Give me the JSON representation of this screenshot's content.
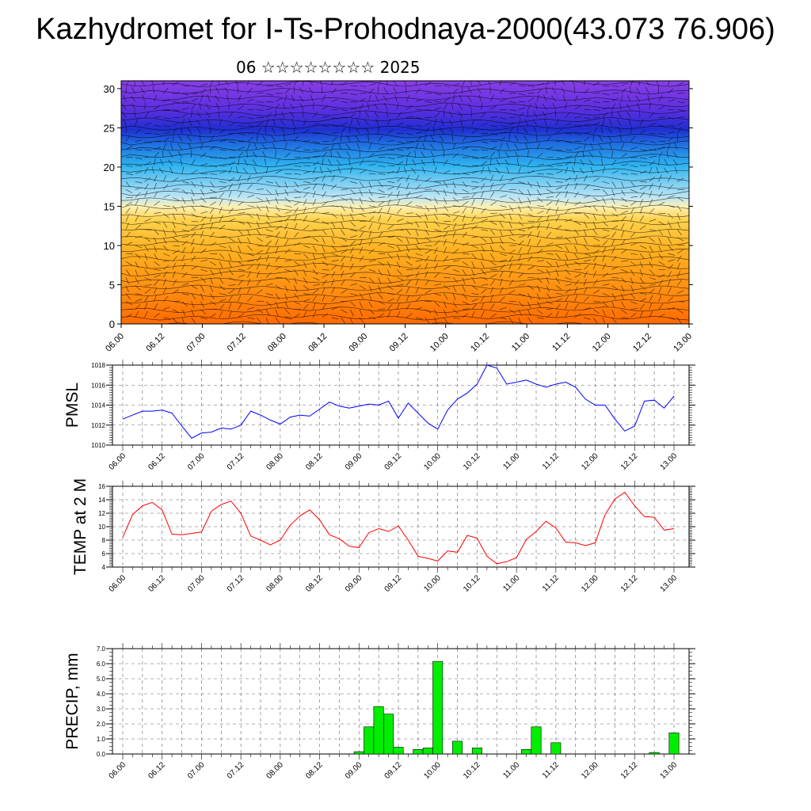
{
  "header": {
    "title": "Kazhydromet for I-Ts-Prohodnaya-2000(43.073 76.906)",
    "subtitle": "06 ☆☆☆☆☆☆☆☆ 2025"
  },
  "chart_data": [
    {
      "type": "heatmap",
      "ylim": [
        0,
        31
      ],
      "yticks": [
        0,
        5,
        10,
        15,
        20,
        25,
        30
      ],
      "xticks": [
        "06.00",
        "06.12",
        "07.00",
        "07.12",
        "08.00",
        "08.12",
        "09.00",
        "09.12",
        "10.00",
        "10.12",
        "11.00",
        "11.12",
        "12.00",
        "12.12",
        "13.00"
      ],
      "colors": {
        "low": "#ff6a00",
        "mid_warm": "#ffd24d",
        "mid_cold": "#bfe6f5",
        "cyan": "#2fb4f0",
        "blue": "#1f2fd0",
        "top": "#8a3fe6"
      }
    },
    {
      "type": "line",
      "ylabel": "PMSL",
      "ylim": [
        1010,
        1018
      ],
      "yticks": [
        1010,
        1012,
        1014,
        1016,
        1018
      ],
      "xticks": [
        "06.00",
        "06.12",
        "07.00",
        "07.12",
        "08.00",
        "08.12",
        "09.00",
        "09.12",
        "10.00",
        "10.12",
        "11.00",
        "11.12",
        "12.00",
        "12.12",
        "13.00"
      ],
      "color": "#0000ff",
      "x": [
        0,
        3,
        6,
        9,
        12,
        15,
        18,
        21,
        24,
        27,
        30,
        33,
        36,
        39,
        42,
        45,
        48,
        51,
        54,
        57,
        60,
        63,
        66,
        69,
        72,
        75,
        78,
        81,
        84,
        87,
        90,
        93,
        96,
        99,
        102,
        105,
        108,
        111,
        114,
        117,
        120,
        123,
        126,
        129,
        132,
        135,
        138,
        141,
        144,
        147,
        150,
        153,
        156,
        159,
        162,
        165,
        168
      ],
      "values": [
        1012.6,
        1013.0,
        1013.4,
        1013.4,
        1013.5,
        1013.2,
        1011.9,
        1010.7,
        1011.2,
        1011.3,
        1011.7,
        1011.6,
        1012.0,
        1013.4,
        1013.0,
        1012.5,
        1012.1,
        1012.8,
        1013.0,
        1012.9,
        1013.6,
        1014.3,
        1013.9,
        1013.7,
        1013.9,
        1014.1,
        1014.0,
        1014.4,
        1012.7,
        1014.2,
        1013.2,
        1012.2,
        1011.6,
        1013.5,
        1014.6,
        1015.2,
        1016.1,
        1018.0,
        1017.7,
        1016.1,
        1016.3,
        1016.5,
        1016.1,
        1015.8,
        1016.1,
        1016.3,
        1015.8,
        1014.6,
        1014.0,
        1014.0,
        1012.6,
        1011.4,
        1011.9,
        1014.4,
        1014.5,
        1013.7,
        1014.9
      ]
    },
    {
      "type": "line",
      "ylabel": "TEMP at 2 M",
      "ylim": [
        4,
        16
      ],
      "yticks": [
        4,
        6,
        8,
        10,
        12,
        14,
        16
      ],
      "xticks": [
        "06.00",
        "06.12",
        "07.00",
        "07.12",
        "08.00",
        "08.12",
        "09.00",
        "09.12",
        "10.00",
        "10.12",
        "11.00",
        "11.12",
        "12.00",
        "12.12",
        "13.00"
      ],
      "color": "#ff0000",
      "x": [
        0,
        3,
        6,
        9,
        12,
        15,
        18,
        21,
        24,
        27,
        30,
        33,
        36,
        39,
        42,
        45,
        48,
        51,
        54,
        57,
        60,
        63,
        66,
        69,
        72,
        75,
        78,
        81,
        84,
        87,
        90,
        93,
        96,
        99,
        102,
        105,
        108,
        111,
        114,
        117,
        120,
        123,
        126,
        129,
        132,
        135,
        138,
        141,
        144,
        147,
        150,
        153,
        156,
        159,
        162,
        165,
        168
      ],
      "values": [
        8.4,
        11.8,
        13.1,
        13.6,
        12.5,
        8.9,
        8.8,
        9.0,
        9.2,
        12.3,
        13.3,
        13.8,
        12.0,
        8.6,
        8.0,
        7.3,
        8.0,
        10.2,
        11.6,
        12.5,
        11.0,
        8.8,
        8.2,
        7.1,
        6.9,
        9.1,
        9.7,
        9.3,
        10.1,
        8.0,
        5.6,
        5.3,
        4.9,
        6.4,
        6.2,
        8.7,
        8.3,
        5.6,
        4.5,
        4.8,
        5.4,
        8.1,
        9.3,
        10.8,
        9.8,
        7.7,
        7.6,
        7.2,
        7.6,
        11.8,
        14.1,
        15.1,
        13.1,
        11.5,
        11.4,
        9.5,
        9.7
      ]
    },
    {
      "type": "bar",
      "ylabel": "PRECIP, mm",
      "ylim": [
        0,
        7
      ],
      "yticks": [
        "0.0",
        "1.0",
        "2.0",
        "3.0",
        "4.0",
        "5.0",
        "6.0",
        "7.0"
      ],
      "xticks": [
        "06.00",
        "06.12",
        "07.00",
        "07.12",
        "08.00",
        "08.12",
        "09.00",
        "09.12",
        "10.00",
        "10.12",
        "11.00",
        "11.12",
        "12.00",
        "12.12",
        "13.00"
      ],
      "color": "#00ee00",
      "x": [
        72,
        75,
        78,
        81,
        84,
        87,
        90,
        93,
        96,
        99,
        102,
        105,
        108,
        111,
        114,
        117,
        120,
        123,
        126,
        129,
        132,
        135,
        138,
        141,
        144,
        147,
        150,
        153,
        156,
        159,
        162,
        165,
        168
      ],
      "values": [
        0.15,
        1.8,
        3.15,
        2.65,
        0.45,
        0.0,
        0.3,
        0.4,
        6.15,
        0.0,
        0.85,
        0.0,
        0.4,
        0.0,
        0.0,
        0.0,
        0.0,
        0.3,
        1.8,
        0.0,
        0.75,
        0.0,
        0.0,
        0.0,
        0.0,
        0.0,
        0.0,
        0.0,
        0.0,
        0.0,
        0.1,
        0.0,
        1.4
      ]
    }
  ]
}
